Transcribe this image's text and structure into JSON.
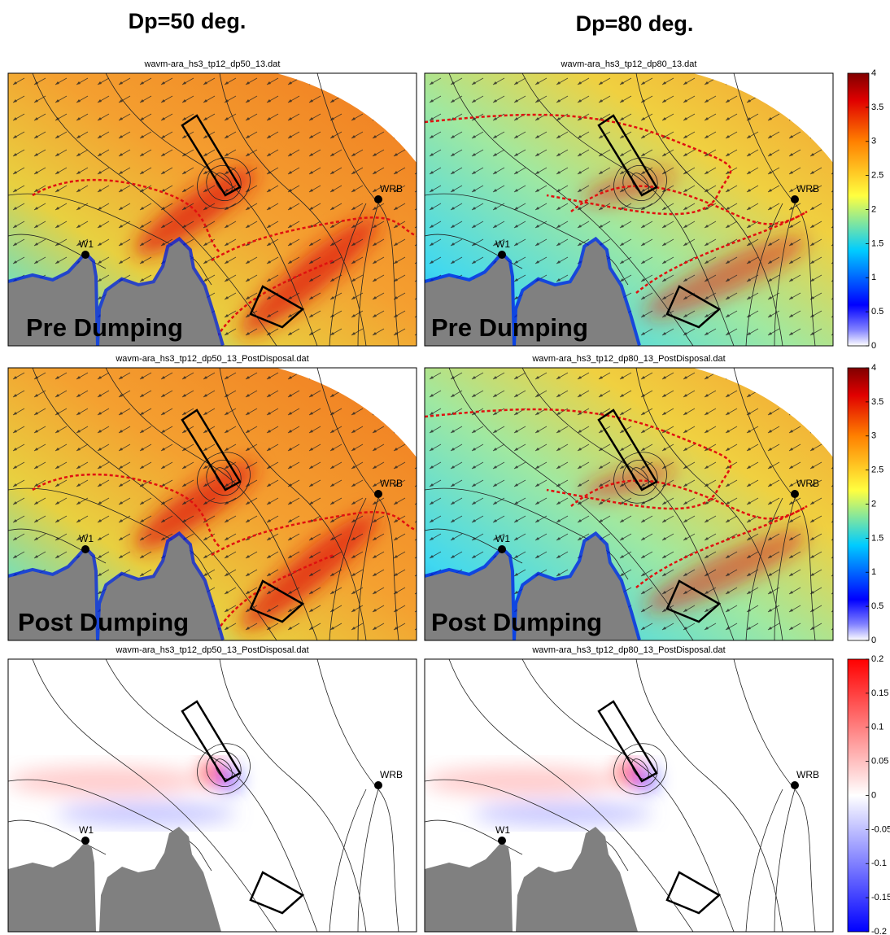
{
  "columns": [
    {
      "title": "Dp=50 deg."
    },
    {
      "title": "Dp=80 deg."
    }
  ],
  "rows": [
    {
      "panels": [
        {
          "title": "wavm-ara_hs3_tp12_dp50_13.dat",
          "label": "Pre Dumping"
        },
        {
          "title": "wavm-ara_hs3_tp12_dp80_13.dat",
          "label": "Pre Dumping"
        }
      ],
      "colorbar": {
        "lim": [
          0,
          4
        ],
        "ticks": [
          0,
          0.5,
          1,
          1.5,
          2,
          2.5,
          3,
          3.5,
          4
        ]
      }
    },
    {
      "panels": [
        {
          "title": "wavm-ara_hs3_tp12_dp50_13_PostDisposal.dat",
          "label": "Post Dumping"
        },
        {
          "title": "wavm-ara_hs3_tp12_dp80_13_PostDisposal.dat",
          "label": "Post Dumping"
        }
      ],
      "colorbar": {
        "lim": [
          0,
          4
        ],
        "ticks": [
          0,
          0.5,
          1,
          1.5,
          2,
          2.5,
          3,
          3.5,
          4
        ]
      }
    },
    {
      "panels": [
        {
          "title": "wavm-ara_hs3_tp12_dp50_13_PostDisposal.dat"
        },
        {
          "title": "wavm-ara_hs3_tp12_dp80_13_PostDisposal.dat"
        }
      ],
      "colorbar": {
        "lim": [
          -0.2,
          0.2
        ],
        "ticks": [
          -0.2,
          -0.15,
          -0.1,
          -0.05,
          0,
          0.05,
          0.1,
          0.15,
          0.2
        ]
      }
    }
  ],
  "stations": [
    "W1",
    "WRB"
  ]
}
